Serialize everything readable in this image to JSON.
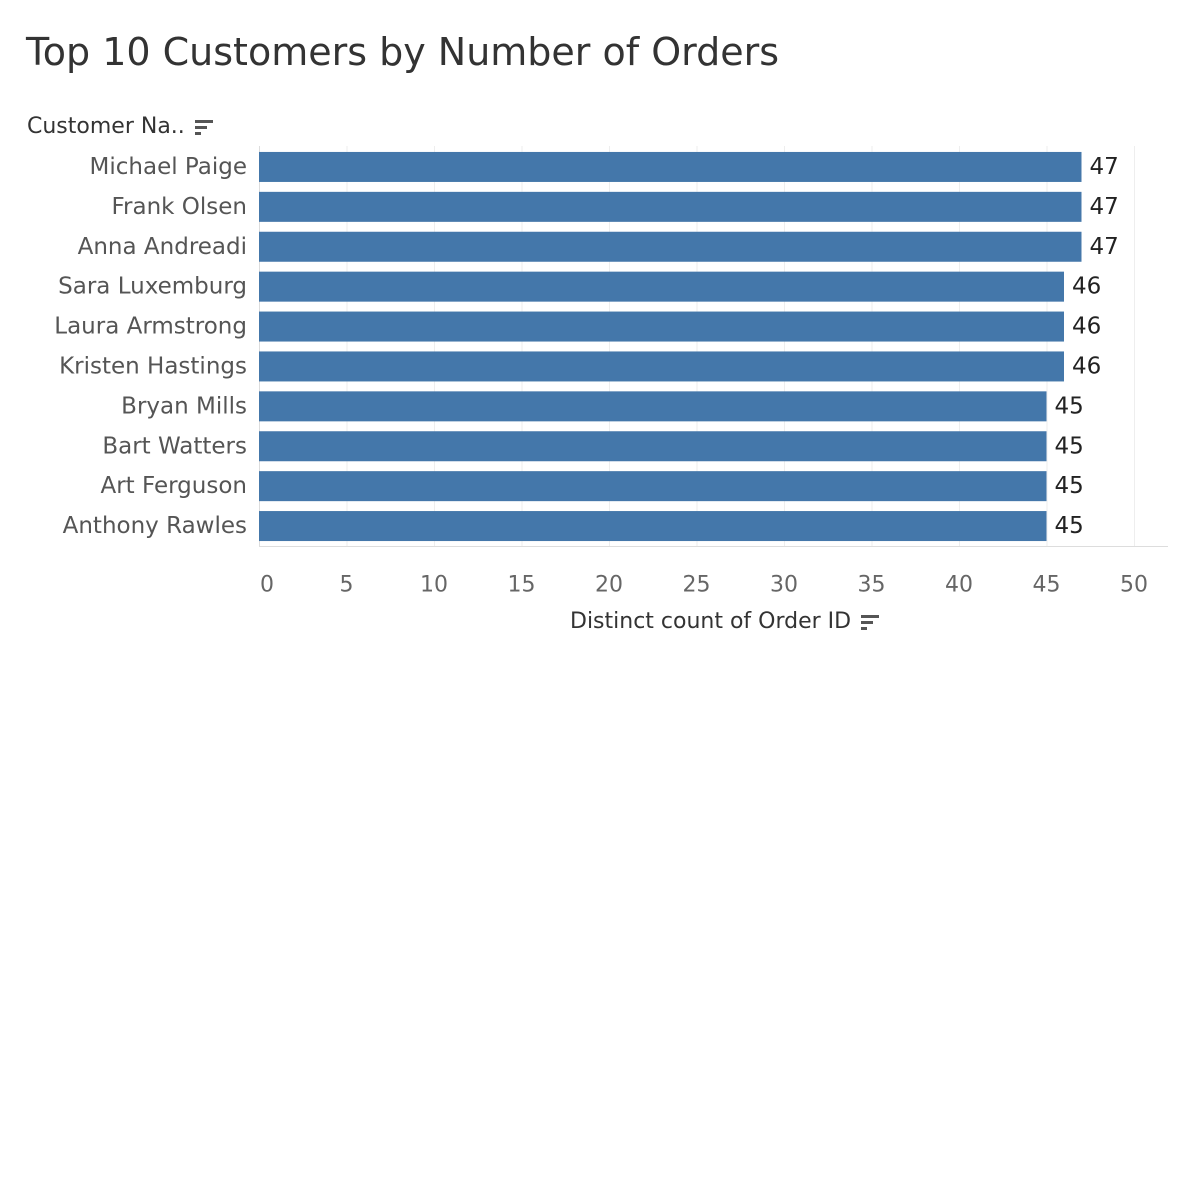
{
  "colors": {
    "bar": "#4477aa",
    "grid": "#eeeeee",
    "axis": "#dddddd"
  },
  "chart_data": {
    "type": "bar",
    "orientation": "horizontal",
    "title": "Top 10 Customers by Number of Orders",
    "row_header": "Customer Na..",
    "xlabel": "Distinct count of Order ID",
    "ylabel": "Customer Na..",
    "categories": [
      "Michael Paige",
      "Frank Olsen",
      "Anna Andreadi",
      "Sara Luxemburg",
      "Laura Armstrong",
      "Kristen Hastings",
      "Bryan Mills",
      "Bart Watters",
      "Art Ferguson",
      "Anthony Rawles"
    ],
    "values": [
      47,
      47,
      47,
      46,
      46,
      46,
      45,
      45,
      45,
      45
    ],
    "xlim": [
      0,
      50
    ],
    "xticks": [
      0,
      5,
      10,
      15,
      20,
      25,
      30,
      35,
      40,
      45,
      50
    ],
    "grid": true,
    "data_labels": true
  }
}
